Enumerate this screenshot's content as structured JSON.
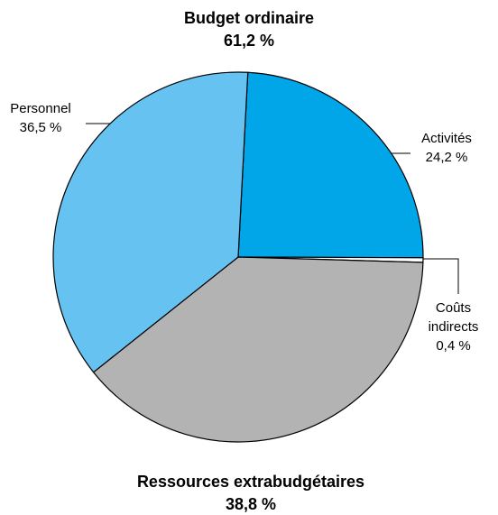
{
  "chart_data": {
    "type": "pie",
    "title": "Budget ordinaire",
    "subtitle": "61,2 %",
    "categories": [
      "Activités",
      "Coûts indirects",
      "Ressources extrabudgétaires",
      "Personnel"
    ],
    "values": [
      24.2,
      0.4,
      38.8,
      36.5
    ],
    "value_labels": [
      "24,2 %",
      "0,4 %",
      "38,8 %",
      "36,5 %"
    ],
    "colors": [
      "#00a6e8",
      "#ffffff",
      "#b3b3b3",
      "#66c2f0"
    ]
  }
}
